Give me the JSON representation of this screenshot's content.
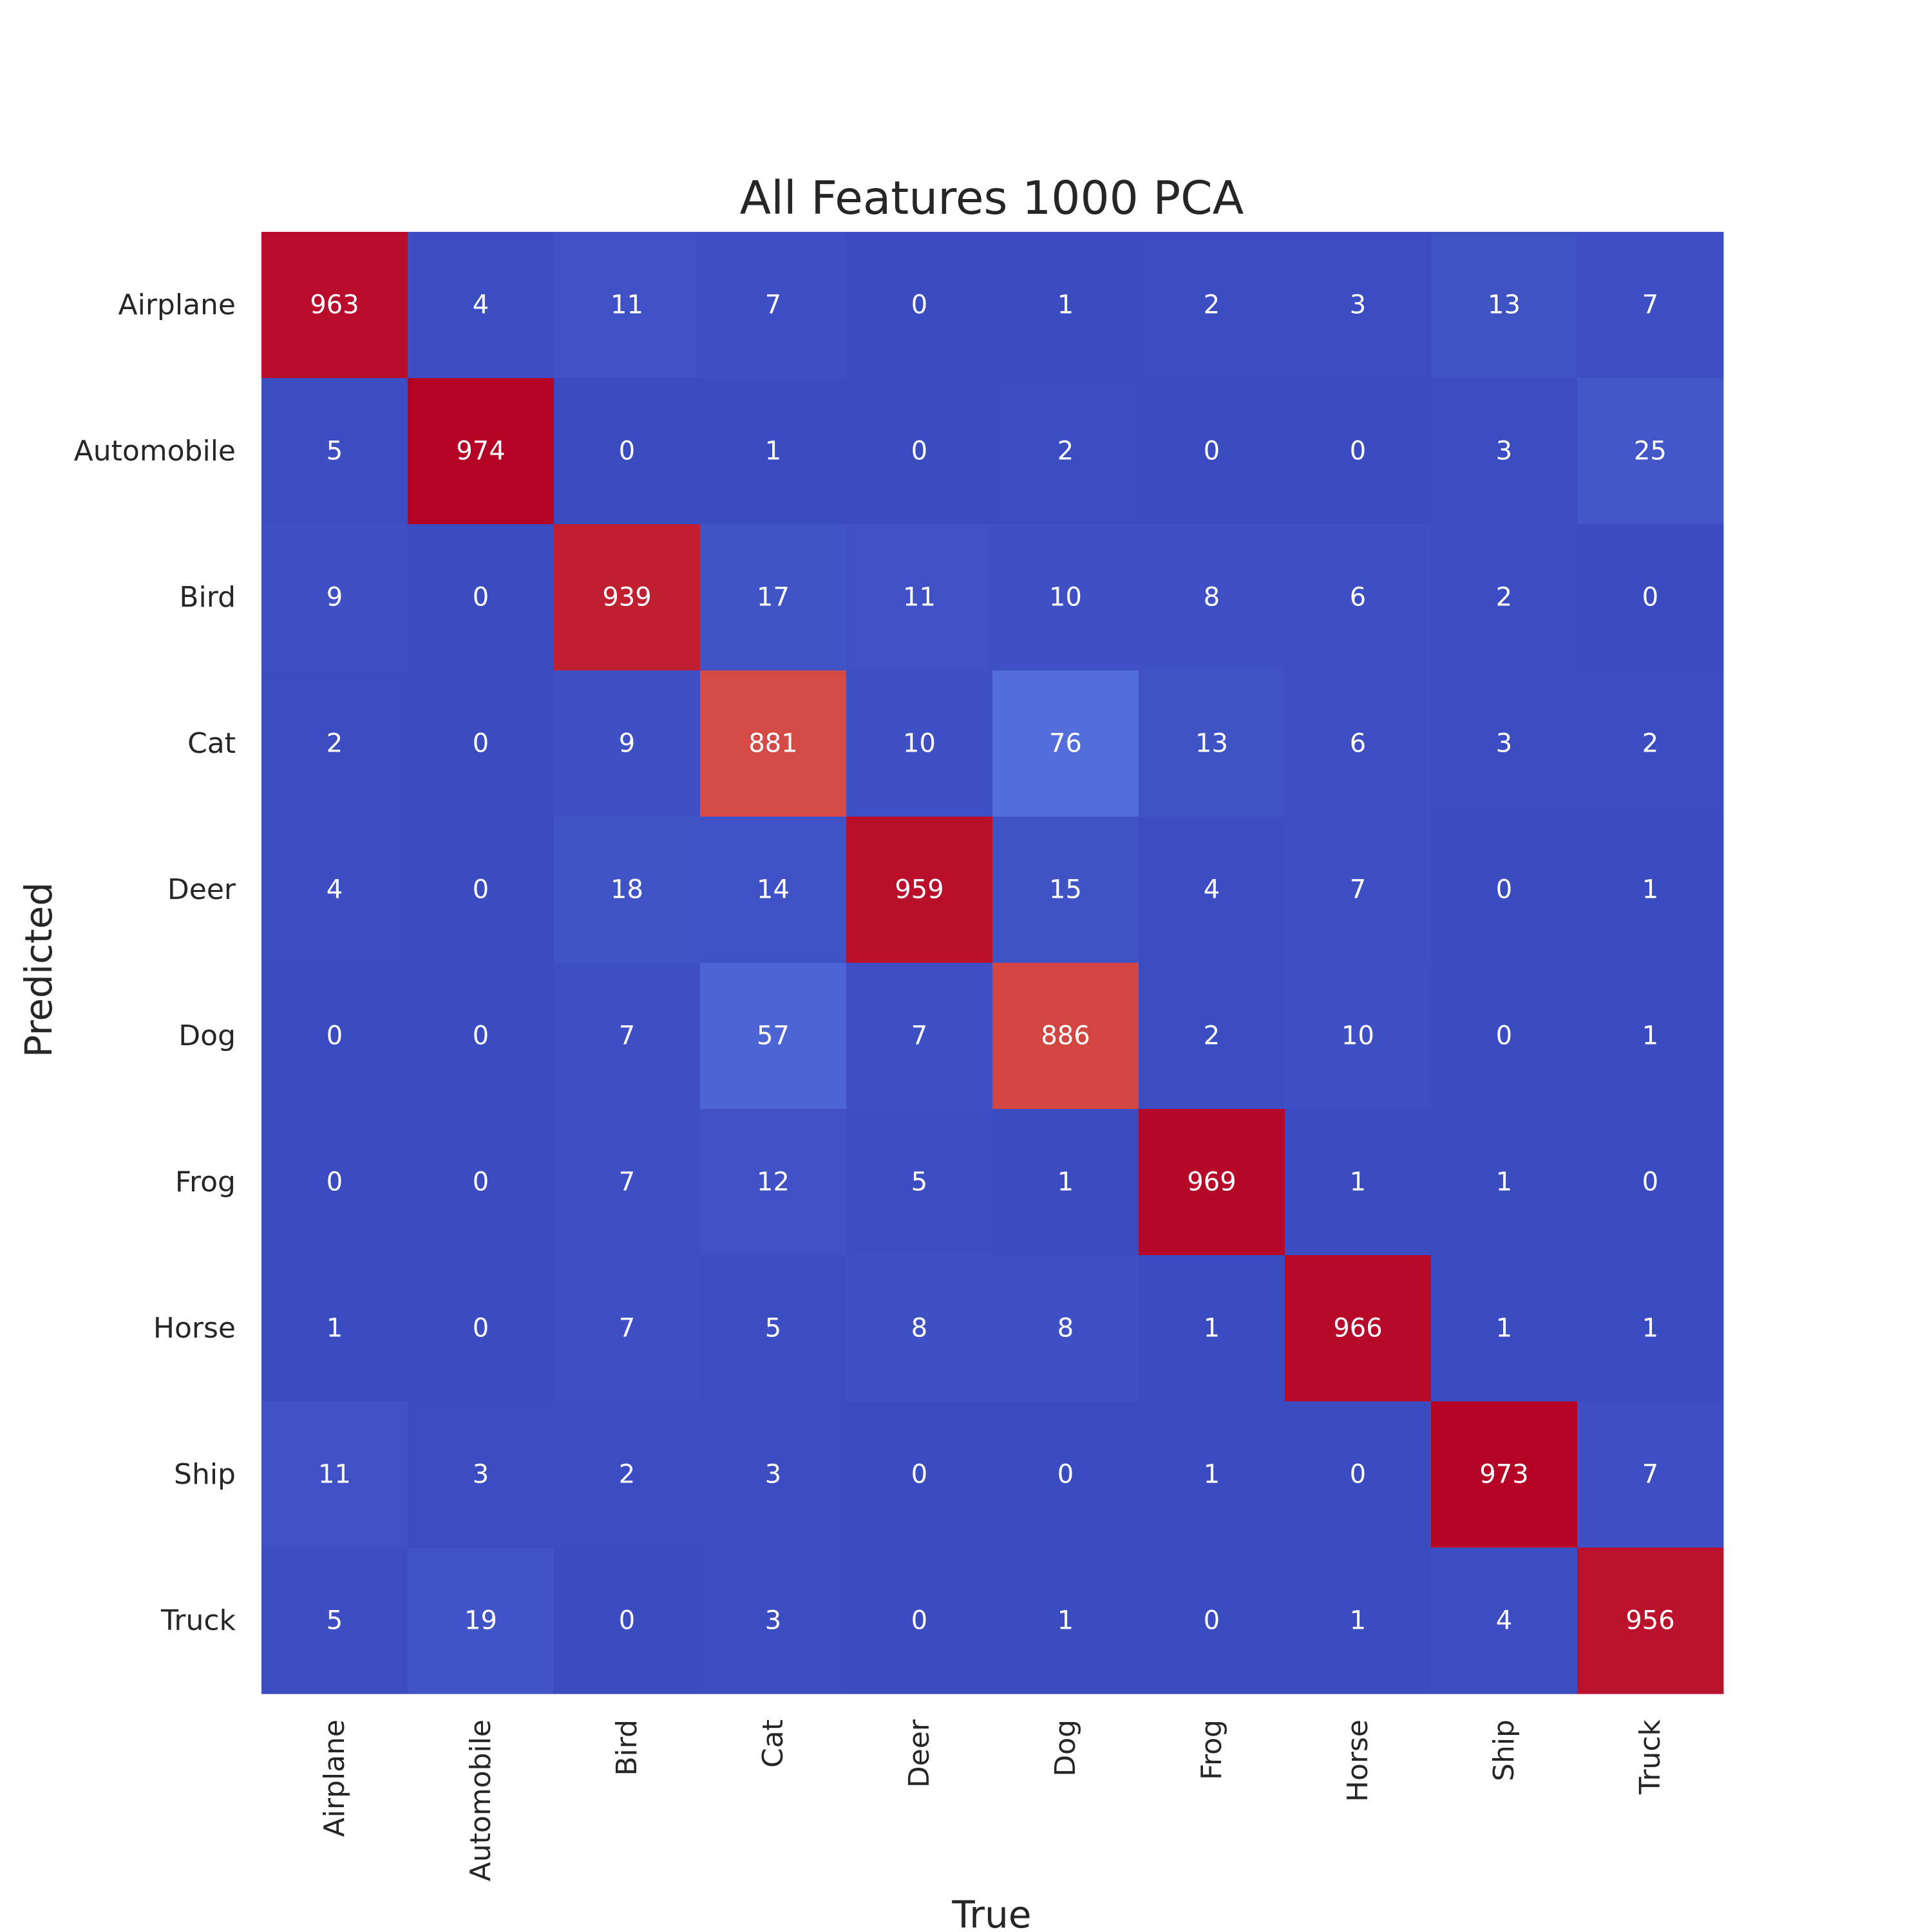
{
  "chart_data": {
    "type": "heatmap",
    "title": "All Features 1000 PCA",
    "xlabel": "True",
    "ylabel": "Predicted",
    "x_categories": [
      "Airplane",
      "Automobile",
      "Bird",
      "Cat",
      "Deer",
      "Dog",
      "Frog",
      "Horse",
      "Ship",
      "Truck"
    ],
    "y_categories": [
      "Airplane",
      "Automobile",
      "Bird",
      "Cat",
      "Deer",
      "Dog",
      "Frog",
      "Horse",
      "Ship",
      "Truck"
    ],
    "values": [
      [
        963,
        4,
        11,
        7,
        0,
        1,
        2,
        3,
        13,
        7
      ],
      [
        5,
        974,
        0,
        1,
        0,
        2,
        0,
        0,
        3,
        25
      ],
      [
        9,
        0,
        939,
        17,
        11,
        10,
        8,
        6,
        2,
        0
      ],
      [
        2,
        0,
        9,
        881,
        10,
        76,
        13,
        6,
        3,
        2
      ],
      [
        4,
        0,
        18,
        14,
        959,
        15,
        4,
        7,
        0,
        1
      ],
      [
        0,
        0,
        7,
        57,
        7,
        886,
        2,
        10,
        0,
        1
      ],
      [
        0,
        0,
        7,
        12,
        5,
        1,
        969,
        1,
        1,
        0
      ],
      [
        1,
        0,
        7,
        5,
        8,
        8,
        1,
        966,
        1,
        1
      ],
      [
        11,
        3,
        2,
        3,
        0,
        0,
        1,
        0,
        973,
        7
      ],
      [
        5,
        19,
        0,
        3,
        0,
        1,
        0,
        1,
        4,
        956
      ]
    ],
    "colormap": "coolwarm",
    "value_range": [
      0,
      974
    ],
    "annotation_color": "#ffffff",
    "colorbar": false,
    "grid": false
  }
}
